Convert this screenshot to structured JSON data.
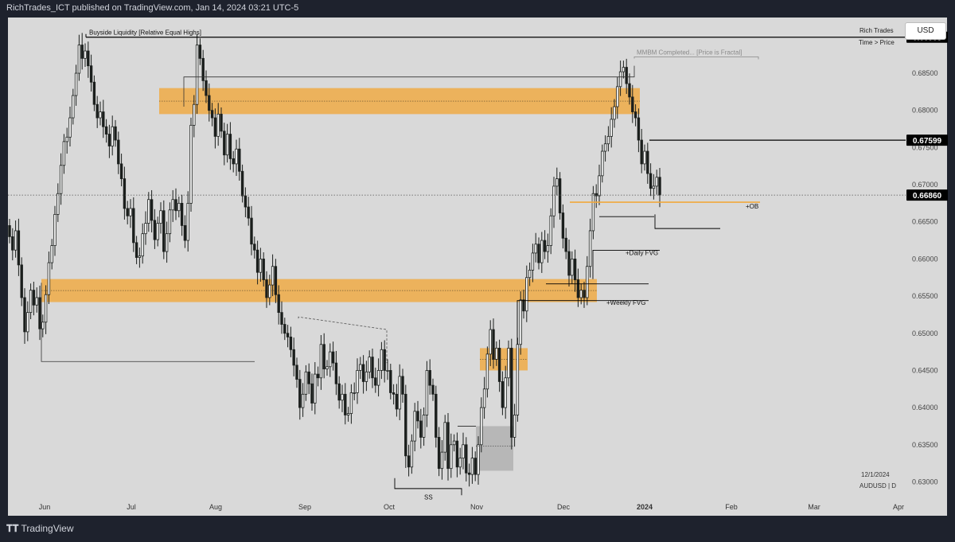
{
  "header": {
    "publish_line": "RichTrades_ICT published on TradingView.com, Jan 14, 2024 03:21 UTC-5"
  },
  "top_right": {
    "author": "Rich Trades",
    "mode": "Time > Price",
    "currency_button": "USD"
  },
  "footer": {
    "brand": "TradingView",
    "brand_icon": "tradingview-logo-icon"
  },
  "chart_data": {
    "type": "candlestick",
    "symbol_label": "AUDUSD | D",
    "date_label": "12/1/2024",
    "x_axis_labels": [
      "Jun",
      "Jul",
      "Aug",
      "Sep",
      "Oct",
      "Nov",
      "Dec",
      "2024",
      "Feb",
      "Mar",
      "Apr"
    ],
    "y_ticks": [
      "0.68500",
      "0.68000",
      "0.67500",
      "0.67000",
      "0.66500",
      "0.66000",
      "0.65500",
      "0.65000",
      "0.64500",
      "0.64000",
      "0.63500",
      "0.63000"
    ],
    "ylim": [
      0.6278,
      0.6925
    ],
    "price_markers": [
      {
        "value": 0.68985,
        "label": "0.68985"
      },
      {
        "value": 0.67599,
        "label": "0.67599"
      },
      {
        "value": 0.6686,
        "label": "0.66860"
      }
    ],
    "candle_closes": [
      0.663,
      0.6612,
      0.6638,
      0.6592,
      0.6548,
      0.6502,
      0.6528,
      0.6558,
      0.6538,
      0.6548,
      0.6506,
      0.6515,
      0.6552,
      0.6595,
      0.6618,
      0.666,
      0.6688,
      0.6726,
      0.6758,
      0.6764,
      0.679,
      0.682,
      0.685,
      0.6888,
      0.687,
      0.688,
      0.686,
      0.6838,
      0.6808,
      0.679,
      0.6798,
      0.6778,
      0.6768,
      0.6752,
      0.6778,
      0.676,
      0.6728,
      0.6708,
      0.6668,
      0.6658,
      0.6668,
      0.6622,
      0.6602,
      0.6604,
      0.6634,
      0.6648,
      0.668,
      0.6652,
      0.6626,
      0.6648,
      0.6665,
      0.661,
      0.6634,
      0.6666,
      0.668,
      0.6665,
      0.6675,
      0.6645,
      0.6625,
      0.6675,
      0.678,
      0.6808,
      0.6888,
      0.687,
      0.684,
      0.682,
      0.68,
      0.679,
      0.6765,
      0.6795,
      0.6772,
      0.674,
      0.6768,
      0.6735,
      0.6728,
      0.6748,
      0.6718,
      0.6685,
      0.667,
      0.6655,
      0.662,
      0.6612,
      0.6582,
      0.66,
      0.6572,
      0.6548,
      0.6565,
      0.659,
      0.6552,
      0.6528,
      0.6512,
      0.65,
      0.6495,
      0.6478,
      0.6457,
      0.6438,
      0.64,
      0.6418,
      0.6448,
      0.6432,
      0.6406,
      0.6445,
      0.644,
      0.6485,
      0.6452,
      0.6455,
      0.6475,
      0.646,
      0.6432,
      0.641,
      0.6418,
      0.639,
      0.6392,
      0.642,
      0.642,
      0.645,
      0.6458,
      0.6435,
      0.6448,
      0.6468,
      0.644,
      0.643,
      0.645,
      0.6478,
      0.645,
      0.645,
      0.642,
      0.6418,
      0.6398,
      0.6442,
      0.6418,
      0.6335,
      0.632,
      0.6355,
      0.6395,
      0.6382,
      0.636,
      0.639,
      0.645,
      0.643,
      0.6418,
      0.636,
      0.6318,
      0.634,
      0.638,
      0.6318,
      0.635,
      0.6355,
      0.632,
      0.6332,
      0.635,
      0.6312,
      0.631,
      0.6332,
      0.631,
      0.635,
      0.64,
      0.6425,
      0.6472,
      0.6505,
      0.6465,
      0.648,
      0.6435,
      0.64,
      0.644,
      0.648,
      0.636,
      0.639,
      0.6485,
      0.6545,
      0.653,
      0.6575,
      0.6585,
      0.6608,
      0.662,
      0.6595,
      0.6625,
      0.661,
      0.6618,
      0.6658,
      0.6698,
      0.6708,
      0.6662,
      0.6628,
      0.661,
      0.6578,
      0.66,
      0.6572,
      0.6548,
      0.6558,
      0.6548,
      0.659,
      0.6638,
      0.6688,
      0.6685,
      0.6712,
      0.6745,
      0.6755,
      0.6765,
      0.6788,
      0.6805,
      0.6832,
      0.6852,
      0.6858,
      0.6836,
      0.6818,
      0.6798,
      0.679,
      0.676,
      0.6728,
      0.6745,
      0.6715,
      0.6695,
      0.6698,
      0.671,
      0.6686
    ],
    "zones": [
      {
        "type": "supply",
        "from": "Jul",
        "price_top": 0.683,
        "price_bottom": 0.6795
      },
      {
        "type": "demand",
        "from": "Jun",
        "price_top": 0.6573,
        "price_bottom": 0.6542
      },
      {
        "type": "demand",
        "from": "Nov",
        "price_top": 0.648,
        "price_bottom": 0.645
      },
      {
        "type": "consolidation",
        "from": "Nov",
        "price_top": 0.6375,
        "price_bottom": 0.6315
      }
    ],
    "annotations": [
      {
        "text": "Buyside Liquidity [Relative Equal Highs]",
        "price": 0.68985
      },
      {
        "text": "MMBM Completed... [Price is Fractal]",
        "price": 0.6872
      },
      {
        "text": "+OB",
        "price": 0.66764
      },
      {
        "text": "+Daily FVG",
        "price": 0.66085
      },
      {
        "text": "+Weekly FVG",
        "price": 0.65425
      },
      {
        "text": "SS",
        "price": 0.6287
      }
    ],
    "colors": {
      "background": "#d9d9d9",
      "candle": "#1b1f1d",
      "zone": "#f0a83c",
      "consolidation": "#9a9a9a",
      "marker_bg": "#000000",
      "marker_text": "#ffffff",
      "chrome": "#1e222d"
    },
    "grid": false,
    "legend": "none"
  }
}
